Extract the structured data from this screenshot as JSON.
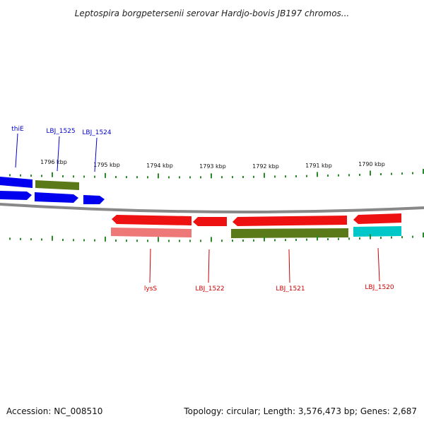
{
  "title": "Leptospira borgpetersenii serovar Hardjo-bovis JB197 chromos...",
  "footer": {
    "accession": "Accession: NC_008510",
    "topology": "Topology: circular; Length: 3,576,473 bp; Genes: 2,687"
  },
  "scale_labels": [
    "1796 kbp",
    "1795 kbp",
    "1794 kbp",
    "1793 kbp",
    "1792 kbp",
    "1791 kbp",
    "1790 kbp"
  ],
  "colors": {
    "forward_label": "#0000cc",
    "reverse_label": "#cc0000",
    "tick": "#2a8a2a",
    "backbone": "#888888"
  },
  "gene_labels_top": [
    "thiE",
    "LBJ_1525",
    "LBJ_1524"
  ],
  "gene_labels_bottom": [
    "lysS",
    "LBJ_1522",
    "LBJ_1521",
    "LBJ_1520"
  ]
}
